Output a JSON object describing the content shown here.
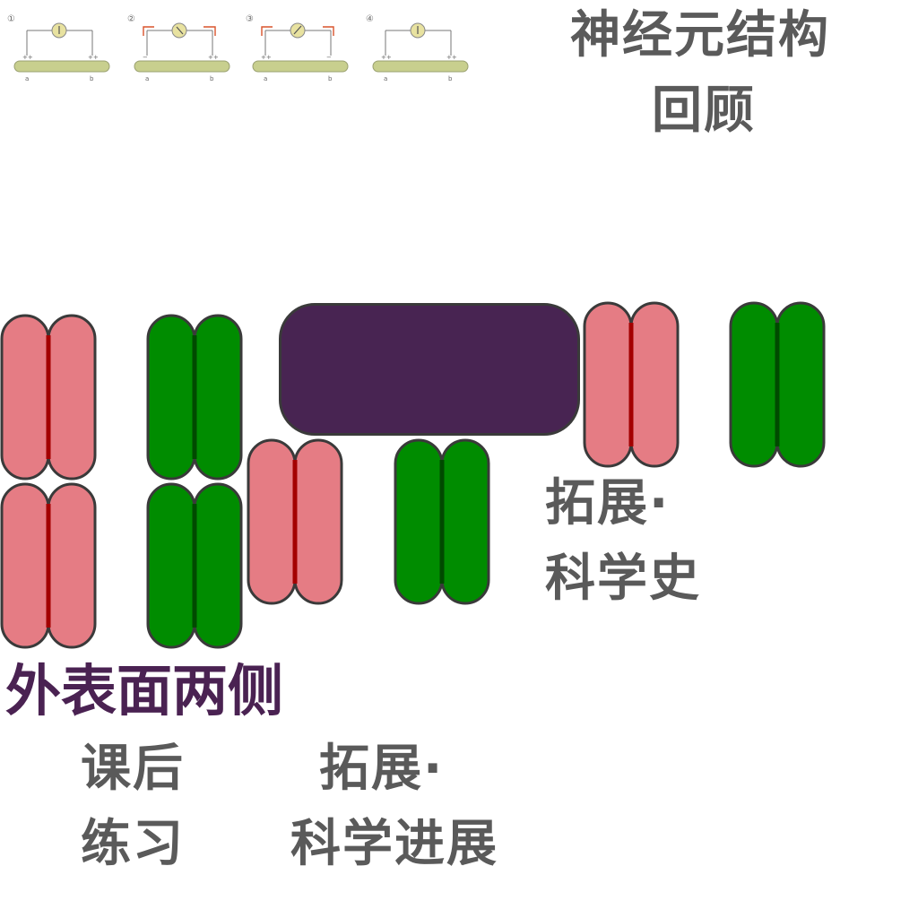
{
  "header": {
    "title_line1": "神经元结构",
    "title_line2": "回顾"
  },
  "diagrams": [
    {
      "number": "①",
      "left_label": "a",
      "right_label": "b",
      "arrows": "none"
    },
    {
      "number": "②",
      "left_label": "a",
      "right_label": "b",
      "arrows": "inward"
    },
    {
      "number": "③",
      "left_label": "a",
      "right_label": "b",
      "arrows": "outward"
    },
    {
      "number": "④",
      "left_label": "a",
      "right_label": "b",
      "arrows": "none"
    }
  ],
  "nav": {
    "history_line1": "拓展·",
    "history_line2": "科学史",
    "outer_surface": "外表面两侧",
    "exercises_line1": "课后",
    "exercises_line2": "练习",
    "progress_line1": "拓展·",
    "progress_line2": "科学进展"
  },
  "colors": {
    "pink": "#e57c84",
    "pink_center": "#a30000",
    "green": "#008c00",
    "green_center": "#004a00",
    "purple": "#482452",
    "title_gray": "#5a5a5a",
    "title_purple": "#4a2252"
  }
}
